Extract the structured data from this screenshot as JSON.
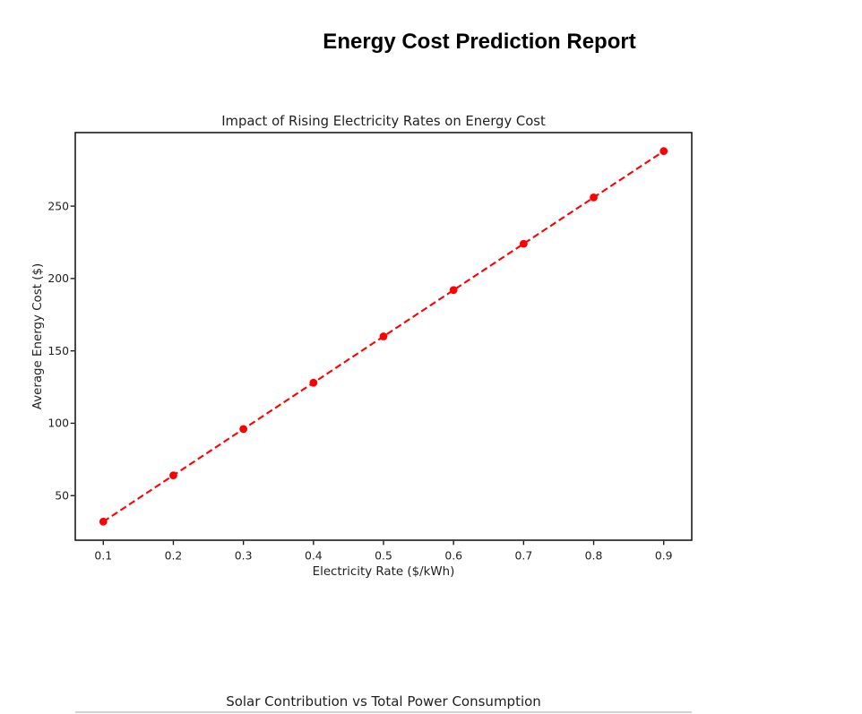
{
  "page": {
    "title": "Energy Cost Prediction Report",
    "background": "#ffffff"
  },
  "colors": {
    "series_red": "#ff0000",
    "axis": "#1b1b1b",
    "chart_text": "#1f1f1f",
    "partial_edge": "#d2d2d2"
  },
  "chart_data": [
    {
      "type": "line",
      "title": "Impact of Rising Electricity Rates on Energy Cost",
      "xlabel": "Electricity Rate ($/kWh)",
      "ylabel": "Average Energy Cost ($)",
      "x": [
        0.1,
        0.2,
        0.3,
        0.4,
        0.5,
        0.6,
        0.7,
        0.8,
        0.9
      ],
      "y": [
        32,
        64,
        96,
        128,
        160,
        192,
        224,
        256,
        288
      ],
      "xticks": [
        0.1,
        0.2,
        0.3,
        0.4,
        0.5,
        0.6,
        0.7,
        0.8,
        0.9
      ],
      "yticks": [
        50,
        100,
        150,
        200,
        250
      ],
      "xlim": [
        0.06,
        0.94
      ],
      "ylim": [
        19.2,
        300.8
      ],
      "line_color": "#ff0000",
      "line_style": "dashed",
      "marker": "circle",
      "grid": false,
      "legend": "none"
    },
    {
      "type": "line",
      "title": "Solar Contribution vs Total Power Consumption",
      "partially_visible": true
    }
  ]
}
